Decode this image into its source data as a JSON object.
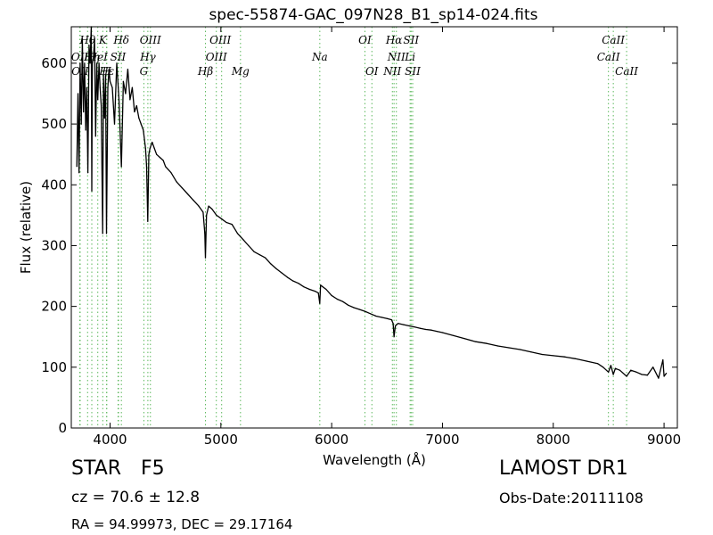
{
  "chart_data": {
    "type": "line",
    "title": "spec-55874-GAC_097N28_B1_sp14-024.fits",
    "xlabel": "Wavelength (Å)",
    "ylabel": "Flux (relative)",
    "xlim": [
      3650,
      9120
    ],
    "ylim": [
      0,
      660
    ],
    "xticks": [
      4000,
      5000,
      6000,
      7000,
      8000,
      9000
    ],
    "yticks": [
      0,
      100,
      200,
      300,
      400,
      500,
      600
    ],
    "grid": false,
    "line_color": "#000000",
    "marker_color": "#5cb85c",
    "series": [
      {
        "x": [
          3700,
          3710,
          3720,
          3730,
          3740,
          3750,
          3760,
          3770,
          3780,
          3790,
          3800,
          3810,
          3820,
          3830,
          3835,
          3840,
          3850,
          3860,
          3870,
          3880,
          3889,
          3900,
          3910,
          3920,
          3933,
          3940,
          3950,
          3960,
          3968,
          3980,
          3990,
          4000,
          4020,
          4040,
          4060,
          4080,
          4102,
          4120,
          4140,
          4160,
          4180,
          4200,
          4220,
          4240,
          4260,
          4280,
          4300,
          4320,
          4330,
          4340,
          4350,
          4360,
          4380,
          4400,
          4420,
          4450,
          4480,
          4500,
          4550,
          4600,
          4650,
          4700,
          4750,
          4800,
          4840,
          4855,
          4861,
          4870,
          4890,
          4920,
          4960,
          5000,
          5050,
          5100,
          5150,
          5200,
          5250,
          5300,
          5350,
          5400,
          5450,
          5500,
          5550,
          5600,
          5650,
          5700,
          5750,
          5800,
          5850,
          5880,
          5893,
          5900,
          5950,
          6000,
          6050,
          6100,
          6150,
          6200,
          6250,
          6300,
          6350,
          6400,
          6450,
          6500,
          6540,
          6555,
          6563,
          6575,
          6600,
          6650,
          6700,
          6750,
          6800,
          6850,
          6900,
          6950,
          7000,
          7100,
          7200,
          7300,
          7400,
          7500,
          7600,
          7700,
          7800,
          7900,
          8000,
          8100,
          8200,
          8300,
          8400,
          8450,
          8498,
          8520,
          8542,
          8560,
          8600,
          8662,
          8700,
          8750,
          8800,
          8850,
          8900,
          8950,
          8990,
          9000,
          9020
        ],
        "y": [
          430,
          550,
          420,
          600,
          500,
          640,
          520,
          600,
          490,
          560,
          420,
          630,
          600,
          660,
          390,
          600,
          610,
          640,
          480,
          600,
          540,
          600,
          560,
          530,
          320,
          580,
          510,
          580,
          320,
          560,
          590,
          570,
          560,
          500,
          600,
          540,
          430,
          570,
          550,
          590,
          540,
          560,
          520,
          530,
          510,
          500,
          490,
          460,
          430,
          340,
          450,
          460,
          470,
          460,
          450,
          445,
          440,
          430,
          420,
          405,
          395,
          385,
          375,
          365,
          355,
          320,
          280,
          350,
          365,
          360,
          350,
          345,
          338,
          335,
          320,
          310,
          300,
          290,
          285,
          280,
          270,
          262,
          255,
          248,
          242,
          238,
          232,
          228,
          225,
          222,
          205,
          235,
          228,
          218,
          212,
          208,
          202,
          198,
          195,
          192,
          188,
          184,
          182,
          180,
          178,
          172,
          150,
          168,
          172,
          170,
          168,
          166,
          164,
          162,
          161,
          159,
          157,
          152,
          147,
          142,
          139,
          135,
          132,
          129,
          125,
          121,
          119,
          117,
          114,
          110,
          106,
          100,
          92,
          103,
          88,
          98,
          95,
          85,
          95,
          92,
          88,
          87,
          100,
          82,
          112,
          85,
          90
        ]
      }
    ],
    "lines": [
      {
        "label": "Hθ",
        "x": 3797
      },
      {
        "label": "OII",
        "x": 3727
      },
      {
        "label": "OII",
        "x": 3730
      },
      {
        "label": "Hη",
        "x": 3835
      },
      {
        "label": "HeI",
        "x": 3889
      },
      {
        "label": "K",
        "x": 3934
      },
      {
        "label": "H",
        "x": 3969
      },
      {
        "label": "Hε",
        "x": 3970
      },
      {
        "label": "SII",
        "x": 4072
      },
      {
        "label": "SII",
        "x": 4076
      },
      {
        "label": "Hδ",
        "x": 4102
      },
      {
        "label": "Hγ",
        "x": 4341
      },
      {
        "label": "G",
        "x": 4305
      },
      {
        "label": "OIII",
        "x": 4364
      },
      {
        "label": "Hβ",
        "x": 4861
      },
      {
        "label": "OIII",
        "x": 4959
      },
      {
        "label": "OIII",
        "x": 5007
      },
      {
        "label": "Mg",
        "x": 5177
      },
      {
        "label": "Na",
        "x": 5893
      },
      {
        "label": "OI",
        "x": 6300
      },
      {
        "label": "OI",
        "x": 6363
      },
      {
        "label": "NII",
        "x": 6548
      },
      {
        "label": "Hα",
        "x": 6563
      },
      {
        "label": "NII",
        "x": 6584
      },
      {
        "label": "Li",
        "x": 6708
      },
      {
        "label": "SII",
        "x": 6717
      },
      {
        "label": "SII",
        "x": 6731
      },
      {
        "label": "CaII",
        "x": 8498
      },
      {
        "label": "CaII",
        "x": 8542
      },
      {
        "label": "CaII",
        "x": 8662
      }
    ],
    "line_labels": [
      {
        "text": "Hθ",
        "x": 3797,
        "row": 1
      },
      {
        "text": "K",
        "x": 3934,
        "row": 1
      },
      {
        "text": "Hδ",
        "x": 4102,
        "row": 1
      },
      {
        "text": "OIII",
        "x": 4364,
        "row": 1
      },
      {
        "text": "OIII",
        "x": 4995,
        "row": 1
      },
      {
        "text": "OI",
        "x": 6300,
        "row": 1
      },
      {
        "text": "Hα",
        "x": 6563,
        "row": 1
      },
      {
        "text": "SII",
        "x": 6717,
        "row": 1
      },
      {
        "text": "CaII",
        "x": 8542,
        "row": 1
      },
      {
        "text": "Hγ",
        "x": 4341,
        "row": 2
      },
      {
        "text": "OII",
        "x": 3727,
        "row": 2
      },
      {
        "text": "Hη",
        "x": 3835,
        "row": 2
      },
      {
        "text": "HeI",
        "x": 3889,
        "row": 2
      },
      {
        "text": "SII",
        "x": 4072,
        "row": 2
      },
      {
        "text": "Na",
        "x": 5893,
        "row": 2
      },
      {
        "text": "NII",
        "x": 6584,
        "row": 2
      },
      {
        "text": "Li",
        "x": 6708,
        "row": 2
      },
      {
        "text": "CaII",
        "x": 8498,
        "row": 2
      },
      {
        "text": "OIII",
        "x": 4959,
        "row": 2
      },
      {
        "text": "OII",
        "x": 3730,
        "row": 3
      },
      {
        "text": "Hε",
        "x": 3970,
        "row": 3
      },
      {
        "text": "H",
        "x": 3969,
        "row": 3
      },
      {
        "text": "G",
        "x": 4305,
        "row": 3
      },
      {
        "text": "Hβ",
        "x": 4861,
        "row": 3
      },
      {
        "text": "Mg",
        "x": 5177,
        "row": 3
      },
      {
        "text": "OI",
        "x": 6363,
        "row": 3
      },
      {
        "text": "NII",
        "x": 6548,
        "row": 3
      },
      {
        "text": "SII",
        "x": 6731,
        "row": 3
      },
      {
        "text": "CaII",
        "x": 8662,
        "row": 3
      }
    ]
  },
  "info": {
    "object_class": "STAR",
    "subclass": "F5",
    "survey": "LAMOST DR1",
    "redshift_text": "cz = 70.6  ± 12.8",
    "obs_date": "Obs-Date:20111108",
    "coords": "RA = 94.99973, DEC = 29.17164"
  }
}
